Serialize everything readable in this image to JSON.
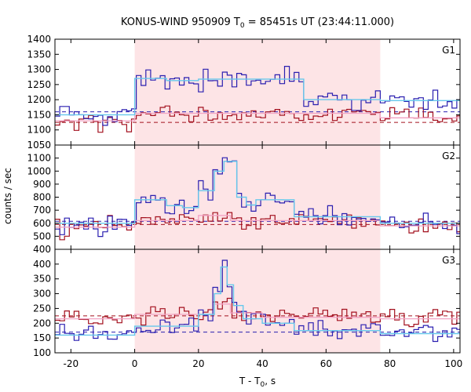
{
  "chart_data": {
    "type": "line",
    "title_prefix": "KONUS-WIND 950909 T",
    "title_sub": "0",
    "title_suffix": " = 85451s UT (23:44:11.000)",
    "xlabel_prefix": "T - T",
    "xlabel_sub": "0",
    "xlabel_suffix": ", s",
    "ylabel": "counts / sec",
    "xlim": [
      -25,
      102
    ],
    "xticks": [
      -20,
      0,
      20,
      40,
      60,
      80,
      100
    ],
    "highlight_interval": [
      0,
      77
    ],
    "colors": {
      "highlight": "#fde4e6",
      "g_blue": "#2a1fb0",
      "g_red": "#a3101e",
      "fit_light": "#66c8ec",
      "fit_blue_dash": "#2a1fb0",
      "fit_red_dash": "#a3101e",
      "fit_pink": "#f2a3c4"
    },
    "panels": [
      {
        "label": "G1",
        "ylim": [
          1050,
          1400
        ],
        "yticks": [
          1050,
          1100,
          1150,
          1200,
          1250,
          1300,
          1350,
          1400
        ],
        "bg_blue_level": 1160,
        "bg_red_level": 1125,
        "blue_segments": [
          {
            "x0": -25,
            "x1": 0,
            "v": 1150
          },
          {
            "x0": 0,
            "x1": 10,
            "v": 1270
          },
          {
            "x0": 10,
            "x1": 20,
            "v": 1263
          },
          {
            "x0": 20,
            "x1": 53,
            "v": 1268
          },
          {
            "x0": 53,
            "x1": 77,
            "v": 1200
          },
          {
            "x0": 77,
            "x1": 102,
            "v": 1197
          }
        ],
        "red_segments": [
          {
            "x0": -25,
            "x1": 0,
            "v": 1130
          },
          {
            "x0": 0,
            "x1": 77,
            "v": 1155
          },
          {
            "x0": 77,
            "x1": 102,
            "v": 1140
          }
        ]
      },
      {
        "label": "G2",
        "ylim": [
          400,
          1200
        ],
        "yticks": [
          400,
          500,
          600,
          700,
          800,
          900,
          1000,
          1100
        ],
        "bg_blue_level": 615,
        "bg_red_level": 590,
        "blue_segments": [
          {
            "x0": -25,
            "x1": 0,
            "v": 600
          },
          {
            "x0": 0,
            "x1": 10,
            "v": 780
          },
          {
            "x0": 10,
            "x1": 15,
            "v": 735
          },
          {
            "x0": 15,
            "x1": 20,
            "v": 720
          },
          {
            "x0": 20,
            "x1": 25,
            "v": 850
          },
          {
            "x0": 25,
            "x1": 28,
            "v": 1000
          },
          {
            "x0": 28,
            "x1": 32,
            "v": 1075
          },
          {
            "x0": 32,
            "x1": 35,
            "v": 800
          },
          {
            "x0": 35,
            "x1": 38,
            "v": 740
          },
          {
            "x0": 38,
            "x1": 50,
            "v": 780
          },
          {
            "x0": 50,
            "x1": 77,
            "v": 650
          },
          {
            "x0": 77,
            "x1": 102,
            "v": 600
          }
        ],
        "red_segments": [
          {
            "x0": -25,
            "x1": 0,
            "v": 570
          },
          {
            "x0": 0,
            "x1": 20,
            "v": 620
          },
          {
            "x0": 20,
            "x1": 30,
            "v": 660
          },
          {
            "x0": 30,
            "x1": 77,
            "v": 620
          },
          {
            "x0": 77,
            "x1": 102,
            "v": 580
          }
        ]
      },
      {
        "label": "G3",
        "ylim": [
          100,
          450
        ],
        "yticks": [
          100,
          150,
          200,
          250,
          300,
          350,
          400
        ],
        "bg_blue_level": 170,
        "bg_red_level": 225,
        "blue_segments": [
          {
            "x0": -25,
            "x1": 0,
            "v": 160
          },
          {
            "x0": 0,
            "x1": 20,
            "v": 190
          },
          {
            "x0": 20,
            "x1": 25,
            "v": 230
          },
          {
            "x0": 25,
            "x1": 27,
            "v": 300
          },
          {
            "x0": 27,
            "x1": 29,
            "v": 390
          },
          {
            "x0": 29,
            "x1": 31,
            "v": 330
          },
          {
            "x0": 31,
            "x1": 34,
            "v": 260
          },
          {
            "x0": 34,
            "x1": 40,
            "v": 215
          },
          {
            "x0": 40,
            "x1": 50,
            "v": 200
          },
          {
            "x0": 50,
            "x1": 77,
            "v": 175
          },
          {
            "x0": 77,
            "x1": 102,
            "v": 165
          }
        ],
        "red_segments": [
          {
            "x0": -25,
            "x1": 0,
            "v": 215
          },
          {
            "x0": 0,
            "x1": 25,
            "v": 230
          },
          {
            "x0": 25,
            "x1": 30,
            "v": 265
          },
          {
            "x0": 30,
            "x1": 40,
            "v": 235
          },
          {
            "x0": 40,
            "x1": 77,
            "v": 220
          },
          {
            "x0": 77,
            "x1": 102,
            "v": 215
          }
        ]
      }
    ]
  }
}
